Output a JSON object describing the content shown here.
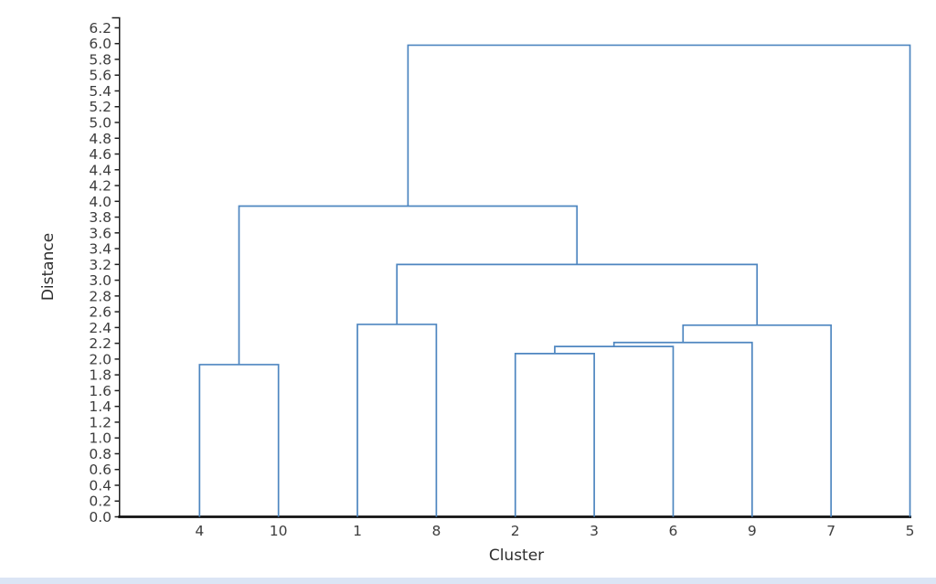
{
  "page": {
    "background": "#ffffff"
  },
  "colors": {
    "link": "#4e86c0",
    "axis": "#202020",
    "text": "#3d3d3d",
    "bottom_strip": "#dbe5f5"
  },
  "chart_data": {
    "type": "dendrogram",
    "title": "",
    "xlabel": "Cluster",
    "ylabel": "Distance",
    "legend": "none",
    "grid": false,
    "ylim": [
      0.0,
      6.2
    ],
    "y_axis": {
      "min": 0.0,
      "max": 6.2,
      "step": 0.2,
      "tick_labels": [
        "0.0",
        "0.2",
        "0.4",
        "0.6",
        "0.8",
        "1.0",
        "1.2",
        "1.4",
        "1.6",
        "1.8",
        "2.0",
        "2.2",
        "2.4",
        "2.6",
        "2.8",
        "3.0",
        "3.2",
        "3.4",
        "3.6",
        "3.8",
        "4.0",
        "4.2",
        "4.4",
        "4.6",
        "4.8",
        "5.0",
        "5.2",
        "5.4",
        "5.6",
        "5.8",
        "6.0",
        "6.2"
      ]
    },
    "leaves": [
      "4",
      "10",
      "1",
      "8",
      "2",
      "3",
      "6",
      "9",
      "7",
      "5"
    ],
    "merges": [
      {
        "node": 10,
        "children": [
          0,
          1
        ],
        "height": 1.93,
        "joins": "4 + 10"
      },
      {
        "node": 11,
        "children": [
          4,
          5
        ],
        "height": 2.07,
        "joins": "2 + 3"
      },
      {
        "node": 12,
        "children": [
          11,
          6
        ],
        "height": 2.16,
        "joins": "{2,3} + 6"
      },
      {
        "node": 13,
        "children": [
          12,
          7
        ],
        "height": 2.21,
        "joins": "{2,3,6} + 9"
      },
      {
        "node": 14,
        "children": [
          2,
          3
        ],
        "height": 2.44,
        "joins": "1 + 8"
      },
      {
        "node": 15,
        "children": [
          13,
          8
        ],
        "height": 2.43,
        "joins": "{2,3,6,9} + 7"
      },
      {
        "node": 16,
        "children": [
          14,
          15
        ],
        "height": 3.2,
        "joins": "{1,8} + {2,3,6,9,7}"
      },
      {
        "node": 17,
        "children": [
          10,
          16
        ],
        "height": 3.94,
        "joins": "{4,10} + rest"
      },
      {
        "node": 18,
        "children": [
          17,
          9
        ],
        "height": 5.98,
        "joins": "all + 5"
      }
    ]
  }
}
